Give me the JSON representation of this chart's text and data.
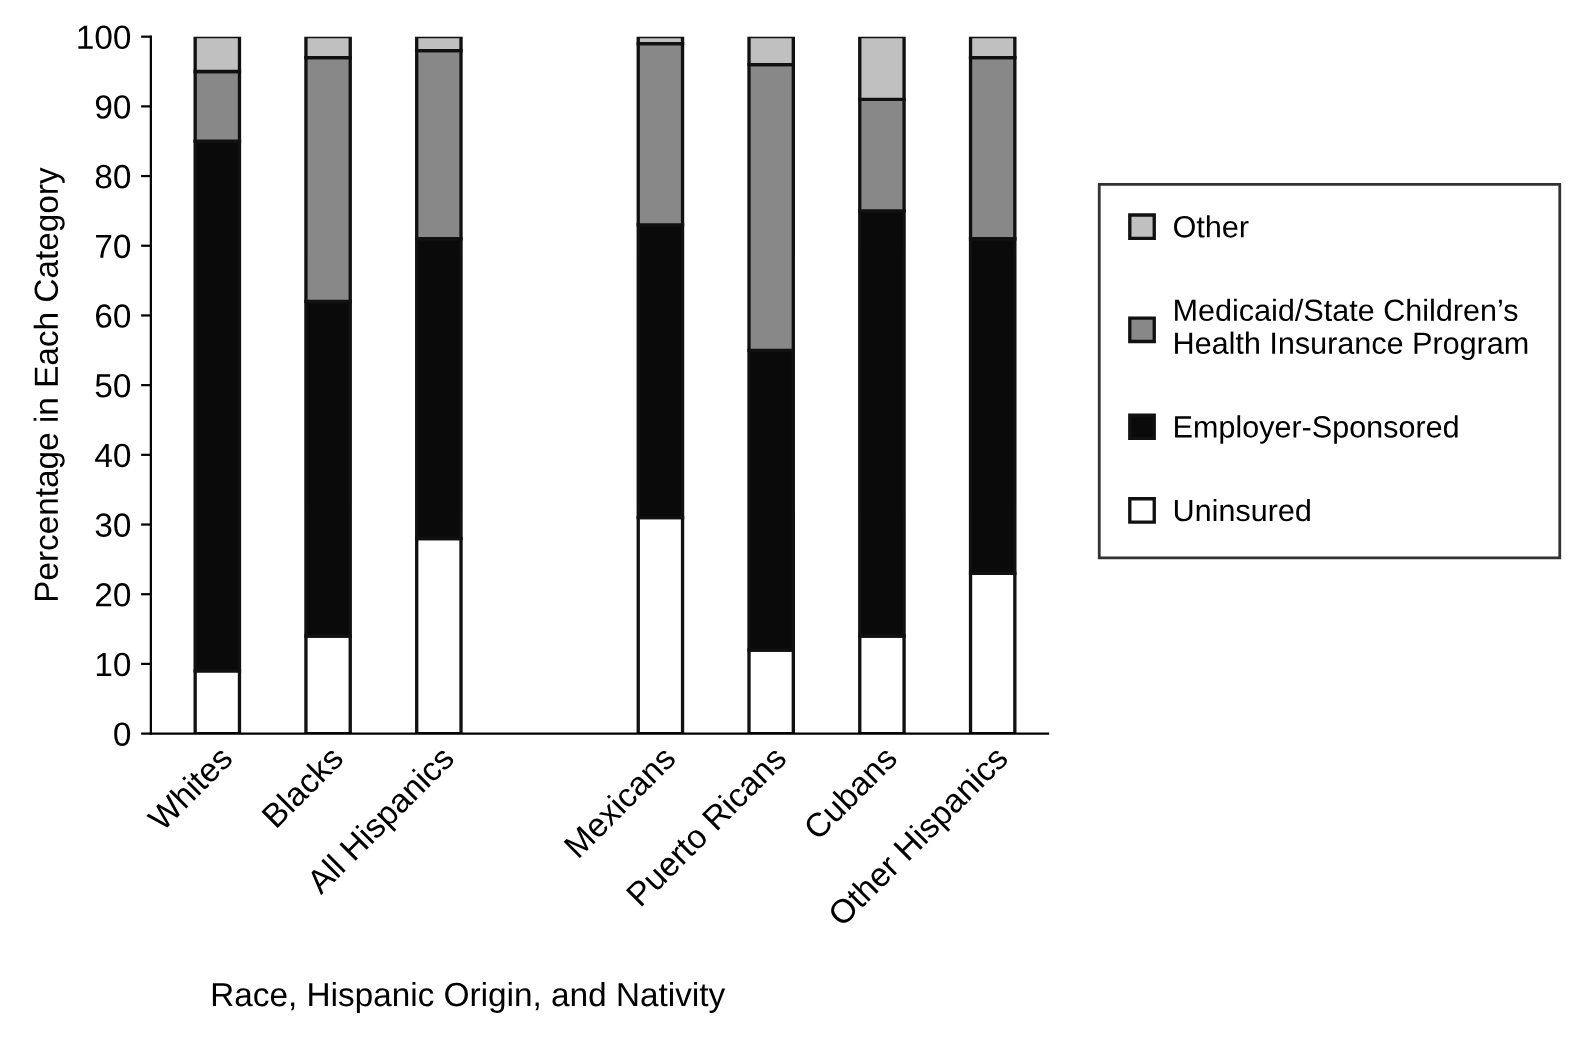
{
  "chart_data": {
    "type": "bar",
    "stacked": true,
    "xlabel": "Race, Hispanic Origin, and Nativity",
    "ylabel": "Percentage in Each Category",
    "categories": [
      "Whites",
      "Blacks",
      "All Hispanics",
      null,
      "Mexicans",
      "Puerto Ricans",
      "Cubans",
      "Other Hispanics"
    ],
    "series": [
      {
        "name": "Uninsured",
        "color": "#ffffff",
        "values": [
          9,
          14,
          28,
          null,
          31,
          12,
          14,
          23
        ]
      },
      {
        "name": "Employer-Sponsored",
        "color": "#0a0a0a",
        "values": [
          76,
          48,
          43,
          null,
          42,
          43,
          61,
          48
        ]
      },
      {
        "name": "Medicaid/State Children’s\nHealth Insurance Program",
        "color": "#888888",
        "values": [
          10,
          35,
          27,
          null,
          26,
          41,
          16,
          26
        ]
      },
      {
        "name": "Other",
        "color": "#c0c0c0",
        "values": [
          5,
          3,
          2,
          null,
          1,
          4,
          9,
          3
        ]
      }
    ],
    "ylim": [
      0,
      100
    ],
    "yticks": [
      0,
      10,
      20,
      30,
      40,
      50,
      60,
      70,
      80,
      90,
      100
    ],
    "grid": false,
    "legend": "right"
  }
}
